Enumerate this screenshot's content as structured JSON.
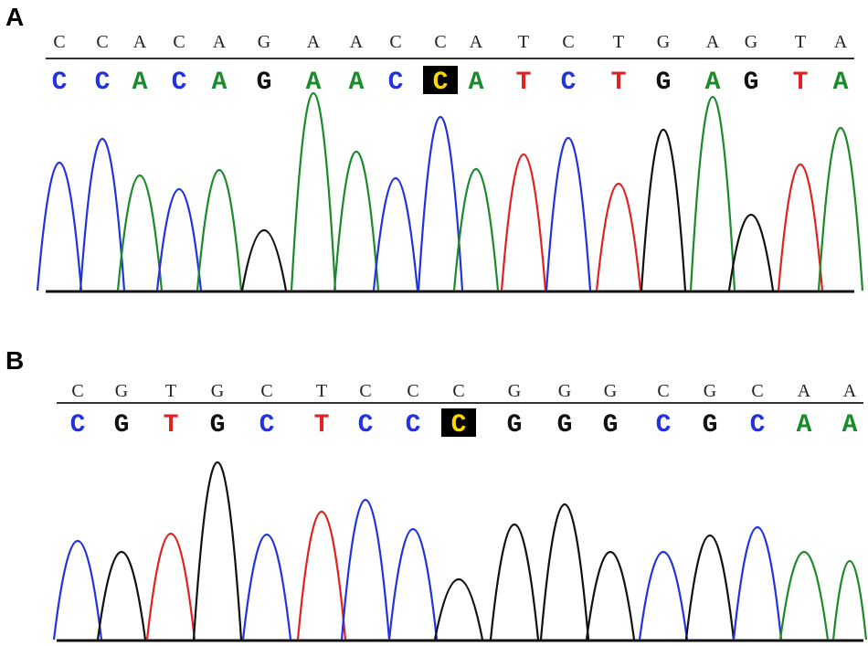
{
  "base_colors": {
    "A": "#1b8a2a",
    "C": "#2233dd",
    "G": "#111111",
    "T": "#e02222"
  },
  "panels": [
    {
      "label": "A",
      "highlight": 9,
      "reference": [
        "C",
        "C",
        "A",
        "C",
        "A",
        "G",
        "A",
        "A",
        "C",
        "C",
        "A",
        "T",
        "C",
        "T",
        "G",
        "A",
        "G",
        "T",
        "A"
      ],
      "calls": [
        "C",
        "C",
        "A",
        "C",
        "A",
        "G",
        "A",
        "A",
        "C",
        "C",
        "A",
        "T",
        "C",
        "T",
        "G",
        "A",
        "G",
        "T",
        "A"
      ]
    },
    {
      "label": "B",
      "highlight": 8,
      "reference": [
        "C",
        "G",
        "T",
        "G",
        "C",
        "T",
        "C",
        "C",
        "C",
        "G",
        "G",
        "G",
        "C",
        "G",
        "C",
        "A",
        "A"
      ],
      "calls": [
        "C",
        "G",
        "T",
        "G",
        "C",
        "T",
        "C",
        "C",
        "C",
        "G",
        "G",
        "G",
        "C",
        "G",
        "C",
        "A",
        "A"
      ]
    }
  ]
}
